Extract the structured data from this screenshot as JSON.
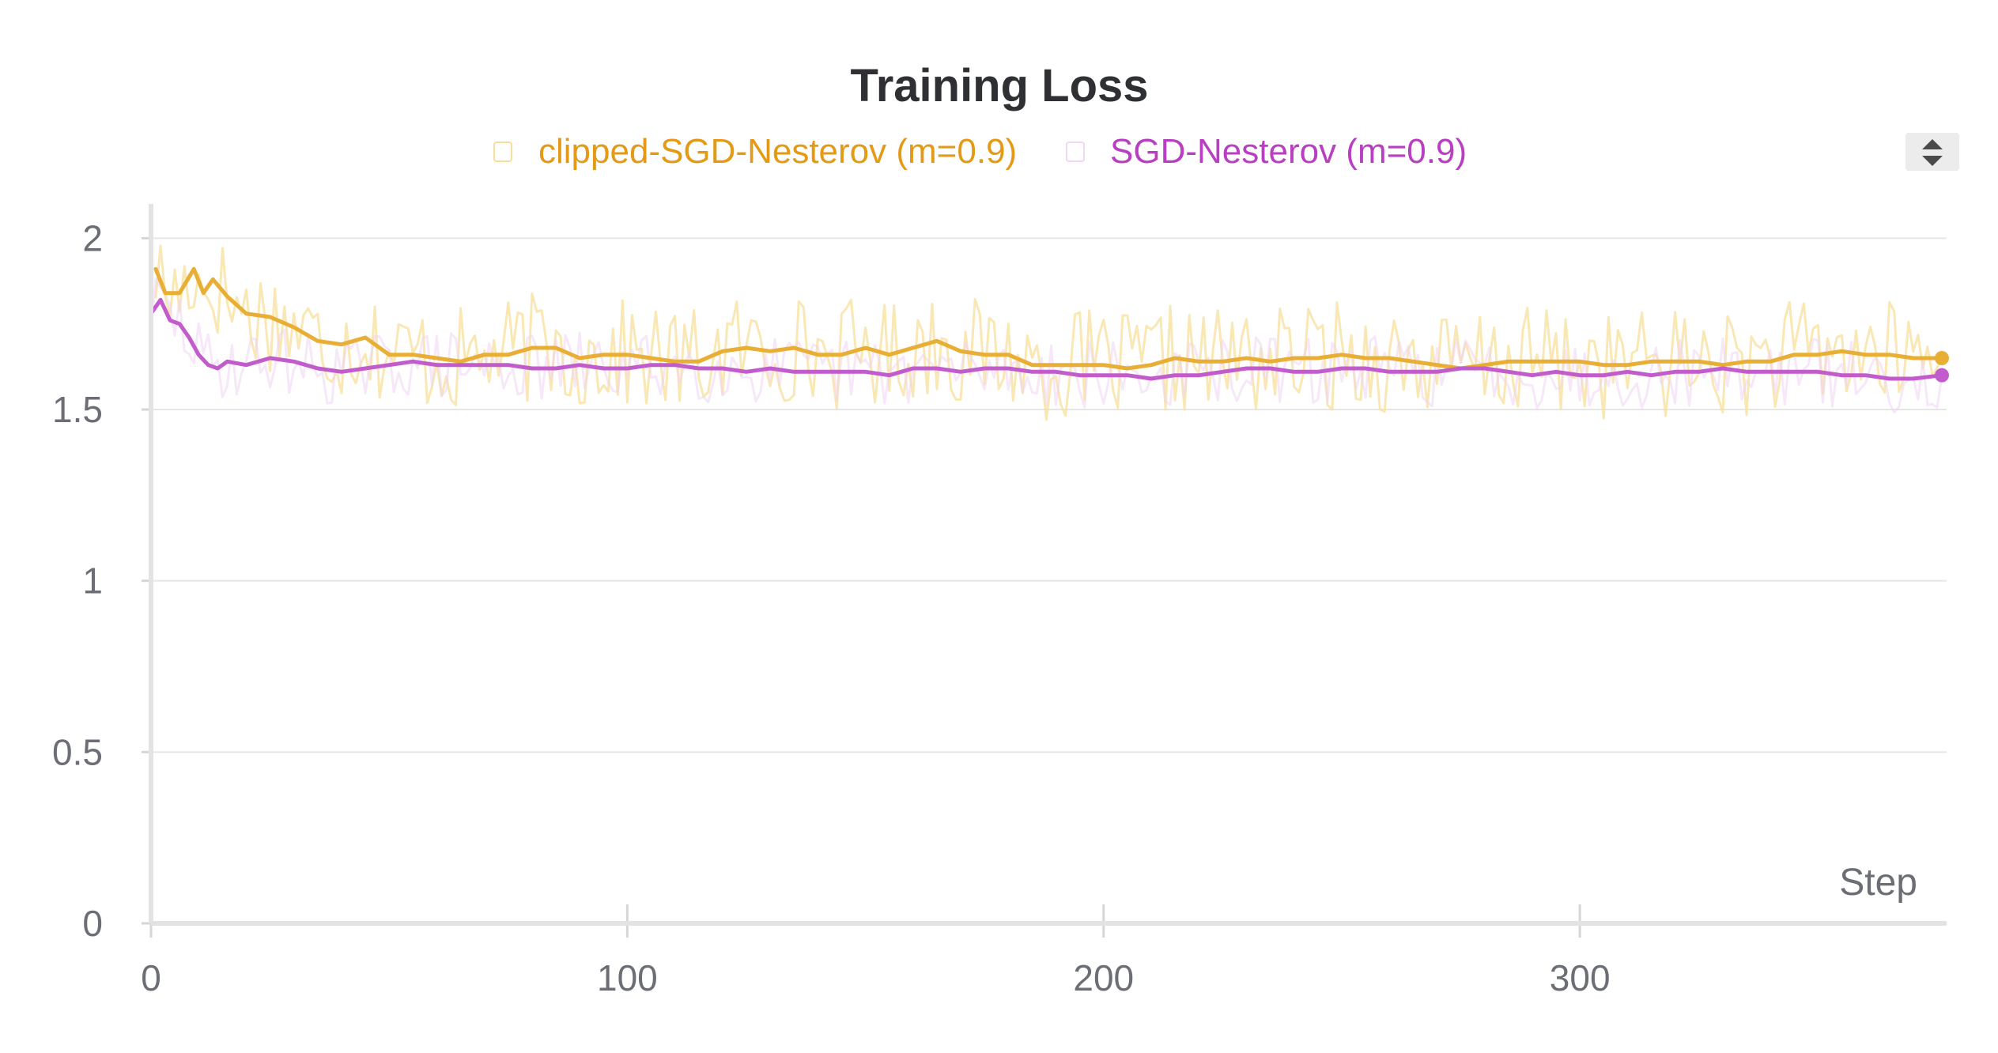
{
  "chart_data": {
    "type": "line",
    "title": "Training Loss",
    "xlabel": "Step",
    "ylabel": "",
    "xlim": [
      0,
      377
    ],
    "ylim": [
      0,
      2.1
    ],
    "x_ticks": [
      0,
      100,
      200,
      300
    ],
    "y_ticks": [
      0,
      0.5,
      1,
      1.5,
      2
    ],
    "x_tick_labels": [
      "0",
      "100",
      "200",
      "300"
    ],
    "y_tick_labels": [
      "0",
      "0.5",
      "1",
      "1.5",
      "2"
    ],
    "grid": true,
    "legend_position": "top-center",
    "series": [
      {
        "name": "clipped-SGD-Nesterov (m=0.9)",
        "color": "#e8ae35",
        "raw_color": "#f7df9b",
        "legend_color": "#e39a16",
        "points": [
          [
            1,
            1.91
          ],
          [
            3,
            1.84
          ],
          [
            6,
            1.84
          ],
          [
            9,
            1.91
          ],
          [
            11,
            1.84
          ],
          [
            13,
            1.88
          ],
          [
            16,
            1.83
          ],
          [
            20,
            1.78
          ],
          [
            25,
            1.77
          ],
          [
            30,
            1.74
          ],
          [
            35,
            1.7
          ],
          [
            40,
            1.69
          ],
          [
            45,
            1.71
          ],
          [
            50,
            1.66
          ],
          [
            55,
            1.66
          ],
          [
            60,
            1.65
          ],
          [
            65,
            1.64
          ],
          [
            70,
            1.66
          ],
          [
            75,
            1.66
          ],
          [
            80,
            1.68
          ],
          [
            85,
            1.68
          ],
          [
            90,
            1.65
          ],
          [
            95,
            1.66
          ],
          [
            100,
            1.66
          ],
          [
            105,
            1.65
          ],
          [
            110,
            1.64
          ],
          [
            115,
            1.64
          ],
          [
            120,
            1.67
          ],
          [
            125,
            1.68
          ],
          [
            130,
            1.67
          ],
          [
            135,
            1.68
          ],
          [
            140,
            1.66
          ],
          [
            145,
            1.66
          ],
          [
            150,
            1.68
          ],
          [
            155,
            1.66
          ],
          [
            160,
            1.68
          ],
          [
            165,
            1.7
          ],
          [
            170,
            1.67
          ],
          [
            175,
            1.66
          ],
          [
            180,
            1.66
          ],
          [
            185,
            1.63
          ],
          [
            190,
            1.63
          ],
          [
            195,
            1.63
          ],
          [
            200,
            1.63
          ],
          [
            205,
            1.62
          ],
          [
            210,
            1.63
          ],
          [
            215,
            1.65
          ],
          [
            220,
            1.64
          ],
          [
            225,
            1.64
          ],
          [
            230,
            1.65
          ],
          [
            235,
            1.64
          ],
          [
            240,
            1.65
          ],
          [
            245,
            1.65
          ],
          [
            250,
            1.66
          ],
          [
            255,
            1.65
          ],
          [
            260,
            1.65
          ],
          [
            265,
            1.64
          ],
          [
            270,
            1.63
          ],
          [
            275,
            1.62
          ],
          [
            280,
            1.63
          ],
          [
            285,
            1.64
          ],
          [
            290,
            1.64
          ],
          [
            295,
            1.64
          ],
          [
            300,
            1.64
          ],
          [
            305,
            1.63
          ],
          [
            310,
            1.63
          ],
          [
            315,
            1.64
          ],
          [
            320,
            1.64
          ],
          [
            325,
            1.64
          ],
          [
            330,
            1.63
          ],
          [
            335,
            1.64
          ],
          [
            340,
            1.64
          ],
          [
            345,
            1.66
          ],
          [
            350,
            1.66
          ],
          [
            355,
            1.67
          ],
          [
            360,
            1.66
          ],
          [
            365,
            1.66
          ],
          [
            370,
            1.65
          ],
          [
            376,
            1.65
          ]
        ]
      },
      {
        "name": "SGD-Nesterov (m=0.9)",
        "color": "#c25ccc",
        "raw_color": "#efd6f2",
        "legend_color": "#b83ec2",
        "points": [
          [
            0,
            1.78
          ],
          [
            2,
            1.82
          ],
          [
            4,
            1.76
          ],
          [
            6,
            1.75
          ],
          [
            8,
            1.71
          ],
          [
            10,
            1.66
          ],
          [
            12,
            1.63
          ],
          [
            14,
            1.62
          ],
          [
            16,
            1.64
          ],
          [
            20,
            1.63
          ],
          [
            25,
            1.65
          ],
          [
            30,
            1.64
          ],
          [
            35,
            1.62
          ],
          [
            40,
            1.61
          ],
          [
            45,
            1.62
          ],
          [
            50,
            1.63
          ],
          [
            55,
            1.64
          ],
          [
            60,
            1.63
          ],
          [
            65,
            1.63
          ],
          [
            70,
            1.63
          ],
          [
            75,
            1.63
          ],
          [
            80,
            1.62
          ],
          [
            85,
            1.62
          ],
          [
            90,
            1.63
          ],
          [
            95,
            1.62
          ],
          [
            100,
            1.62
          ],
          [
            105,
            1.63
          ],
          [
            110,
            1.63
          ],
          [
            115,
            1.62
          ],
          [
            120,
            1.62
          ],
          [
            125,
            1.61
          ],
          [
            130,
            1.62
          ],
          [
            135,
            1.61
          ],
          [
            140,
            1.61
          ],
          [
            145,
            1.61
          ],
          [
            150,
            1.61
          ],
          [
            155,
            1.6
          ],
          [
            160,
            1.62
          ],
          [
            165,
            1.62
          ],
          [
            170,
            1.61
          ],
          [
            175,
            1.62
          ],
          [
            180,
            1.62
          ],
          [
            185,
            1.61
          ],
          [
            190,
            1.61
          ],
          [
            195,
            1.6
          ],
          [
            200,
            1.6
          ],
          [
            205,
            1.6
          ],
          [
            210,
            1.59
          ],
          [
            215,
            1.6
          ],
          [
            220,
            1.6
          ],
          [
            225,
            1.61
          ],
          [
            230,
            1.62
          ],
          [
            235,
            1.62
          ],
          [
            240,
            1.61
          ],
          [
            245,
            1.61
          ],
          [
            250,
            1.62
          ],
          [
            255,
            1.62
          ],
          [
            260,
            1.61
          ],
          [
            265,
            1.61
          ],
          [
            270,
            1.61
          ],
          [
            275,
            1.62
          ],
          [
            280,
            1.62
          ],
          [
            285,
            1.61
          ],
          [
            290,
            1.6
          ],
          [
            295,
            1.61
          ],
          [
            300,
            1.6
          ],
          [
            305,
            1.6
          ],
          [
            310,
            1.61
          ],
          [
            315,
            1.6
          ],
          [
            320,
            1.61
          ],
          [
            325,
            1.61
          ],
          [
            330,
            1.62
          ],
          [
            335,
            1.61
          ],
          [
            340,
            1.61
          ],
          [
            345,
            1.61
          ],
          [
            350,
            1.61
          ],
          [
            355,
            1.6
          ],
          [
            360,
            1.6
          ],
          [
            365,
            1.59
          ],
          [
            370,
            1.59
          ],
          [
            376,
            1.6
          ]
        ]
      }
    ]
  }
}
